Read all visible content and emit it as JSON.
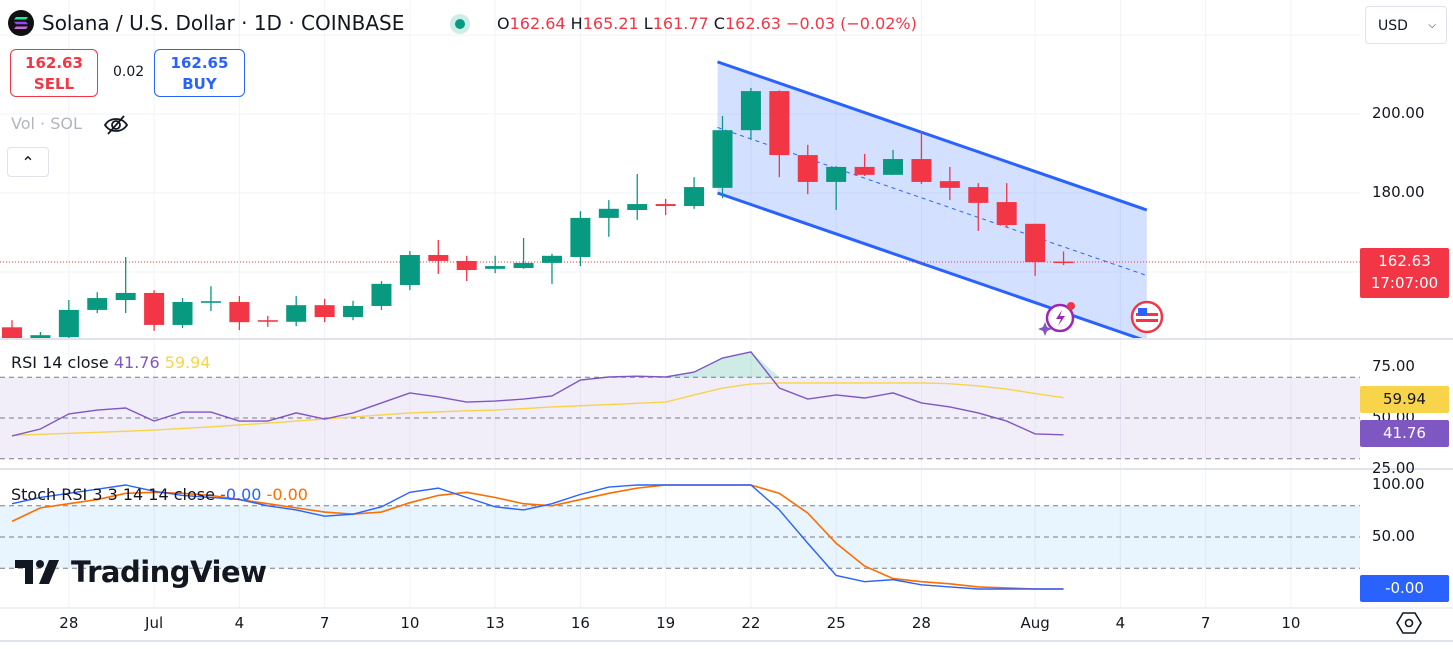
{
  "header": {
    "symbol_title": "Solana / U.S. Dollar · 1D · COINBASE",
    "ohlc": {
      "o_label": "O",
      "o": "162.64",
      "h_label": "H",
      "h": "165.21",
      "l_label": "L",
      "l": "161.77",
      "c_label": "C",
      "c": "162.63",
      "change": "−0.03 (−0.02%)"
    },
    "currency": "USD"
  },
  "trade": {
    "sell_price": "162.63",
    "sell_label": "SELL",
    "spread": "0.02",
    "buy_price": "162.65",
    "buy_label": "BUY"
  },
  "volume_label": "Vol · SOL",
  "colors": {
    "up": "#089981",
    "down": "#f23645",
    "channel": "#2962ff",
    "rsi": "#7e57c2",
    "rsi_ma": "#f7d44a",
    "stoch_k": "#2962ff",
    "stoch_d": "#ff6d00"
  },
  "watermark": "TradingView",
  "chart_data": [
    {
      "type": "candlestick",
      "title": "Solana / U.S. Dollar · 1D · COINBASE",
      "ylim": [
        140,
        215
      ],
      "x_ticks": [
        {
          "i": 2,
          "label": "28"
        },
        {
          "i": 5,
          "label": "Jul"
        },
        {
          "i": 8,
          "label": "4"
        },
        {
          "i": 11,
          "label": "7"
        },
        {
          "i": 14,
          "label": "10"
        },
        {
          "i": 17,
          "label": "13"
        },
        {
          "i": 20,
          "label": "16"
        },
        {
          "i": 23,
          "label": "19"
        },
        {
          "i": 26,
          "label": "22"
        },
        {
          "i": 29,
          "label": "25"
        },
        {
          "i": 32,
          "label": "28"
        },
        {
          "i": 36,
          "label": "Aug"
        },
        {
          "i": 39,
          "label": "4"
        },
        {
          "i": 42,
          "label": "7"
        },
        {
          "i": 45,
          "label": "10"
        }
      ],
      "y_ticks": [
        {
          "v": 200,
          "label": "200.00"
        },
        {
          "v": 180,
          "label": "180.00"
        }
      ],
      "last_price": {
        "value": 162.63,
        "label": "162.63",
        "countdown": "17:07:00"
      },
      "candles_ohlc": [
        [
          146,
          147.8,
          142,
          143
        ],
        [
          143,
          144.8,
          142,
          144
        ],
        [
          143.5,
          152.9,
          143,
          150.4
        ],
        [
          150.4,
          154.9,
          149.6,
          153.4
        ],
        [
          152.9,
          163.8,
          149.6,
          154.7
        ],
        [
          154.7,
          155.4,
          145.1,
          146.6
        ],
        [
          146.6,
          153.4,
          145.8,
          152.4
        ],
        [
          152.2,
          156.4,
          150.1,
          152.6
        ],
        [
          152.4,
          153.9,
          145.3,
          147.3
        ],
        [
          147.8,
          148.9,
          146.1,
          147.4
        ],
        [
          147.4,
          153.9,
          146.3,
          151.6
        ],
        [
          151.6,
          153.2,
          147.3,
          148.6
        ],
        [
          148.6,
          152.7,
          147.8,
          151.4
        ],
        [
          151.4,
          157.7,
          150.4,
          157
        ],
        [
          156.7,
          165.3,
          155.4,
          164.3
        ],
        [
          164.3,
          168.1,
          159.5,
          162.8
        ],
        [
          162.8,
          164.1,
          157.7,
          160.5
        ],
        [
          160.8,
          164.1,
          159.7,
          161.5
        ],
        [
          161,
          168.6,
          160.8,
          162.3
        ],
        [
          162.3,
          164.6,
          157,
          164.1
        ],
        [
          163.8,
          175.4,
          161.5,
          173.7
        ],
        [
          173.7,
          178.2,
          168.9,
          176
        ],
        [
          175.7,
          184.8,
          173.2,
          177.2
        ],
        [
          177.2,
          178.5,
          174.4,
          176.7
        ],
        [
          176.7,
          184,
          176,
          181.5
        ],
        [
          181.3,
          199.5,
          178.7,
          195.9
        ],
        [
          195.9,
          206.6,
          193.4,
          205.8
        ],
        [
          205.8,
          206,
          184,
          189.6
        ],
        [
          189.6,
          192.2,
          179.7,
          182.8
        ],
        [
          182.8,
          186.8,
          175.7,
          186.6
        ],
        [
          186.6,
          189.9,
          184.3,
          184.6
        ],
        [
          184.6,
          190.9,
          184.6,
          188.6
        ],
        [
          188.6,
          195.7,
          182.3,
          182.8
        ],
        [
          183,
          186.6,
          178.2,
          181.3
        ],
        [
          181.5,
          182.5,
          170.4,
          177.5
        ],
        [
          177.7,
          182.5,
          171.4,
          171.9
        ],
        [
          172.2,
          172.2,
          159,
          162.5
        ],
        [
          162.64,
          165.21,
          161.77,
          162.63
        ]
      ],
      "channel": {
        "start_i": 25,
        "end_i": 40,
        "upper": [
          213.2,
          175.7
        ],
        "lower": [
          180,
          142.5
        ],
        "middle": [
          196.6,
          159.1
        ]
      }
    },
    {
      "type": "line",
      "title": "RSI 14 close",
      "legend": [
        "41.76",
        "59.94"
      ],
      "ylim": [
        20,
        85
      ],
      "bands": [
        70,
        50,
        30
      ],
      "y_ticks": [
        {
          "v": 75,
          "label": "75.00"
        },
        {
          "v": 50,
          "label": "50.00"
        },
        {
          "v": 25,
          "label": "25.00"
        }
      ],
      "series": [
        {
          "name": "RSI",
          "last_label": "41.76",
          "values": [
            41.2,
            44.6,
            52,
            53.9,
            54.9,
            48.5,
            52.9,
            52.9,
            48.5,
            48.5,
            52.5,
            49.5,
            52.5,
            57.4,
            62.3,
            60.3,
            57.8,
            58.3,
            59.3,
            60.8,
            68.6,
            70.1,
            70.5,
            70.1,
            72.5,
            79.4,
            82.4,
            64.7,
            59.3,
            61.3,
            59.8,
            62.3,
            57.4,
            55.4,
            52.5,
            48.5,
            42.2,
            41.76
          ]
        },
        {
          "name": "RSI-based MA",
          "last_label": "59.94",
          "values": [
            41.5,
            42,
            42.5,
            43,
            43.5,
            44.1,
            44.9,
            45.7,
            46.6,
            47.5,
            48.5,
            49.5,
            50.5,
            51.5,
            52.5,
            53,
            53.5,
            53.9,
            54.6,
            55.4,
            56,
            56.6,
            57.2,
            57.8,
            61.3,
            64.7,
            66.7,
            67.2,
            67.2,
            67.2,
            67.2,
            67.2,
            67.2,
            66.8,
            65.7,
            64.2,
            62,
            59.94
          ]
        }
      ]
    },
    {
      "type": "line",
      "title": "Stoch RSI 3 3 14 14 close",
      "legend": [
        "-0.00",
        "-0.00"
      ],
      "ylim": [
        -5,
        105
      ],
      "bands": [
        80,
        50,
        20
      ],
      "y_ticks": [
        {
          "v": 100,
          "label": "100.00"
        },
        {
          "v": 50,
          "label": "50.00"
        }
      ],
      "last_label": "-0.00",
      "series": [
        {
          "name": "K",
          "values": [
            82,
            88,
            92,
            96,
            100,
            94,
            90,
            88,
            86,
            80,
            76,
            70,
            72,
            79,
            93,
            97,
            88,
            79,
            76,
            82,
            91,
            98,
            100,
            100,
            100,
            100,
            100,
            76,
            44,
            13,
            7,
            9,
            4,
            2,
            0,
            0,
            0,
            0
          ]
        },
        {
          "name": "D",
          "values": [
            65,
            78,
            82,
            86,
            92,
            93,
            92,
            90,
            86,
            82,
            78,
            74,
            72,
            74,
            83,
            90,
            93,
            88,
            82,
            80,
            86,
            92,
            97,
            100,
            100,
            100,
            100,
            92,
            73,
            44,
            22,
            10,
            7,
            5,
            2,
            1,
            0,
            0
          ]
        }
      ]
    }
  ]
}
